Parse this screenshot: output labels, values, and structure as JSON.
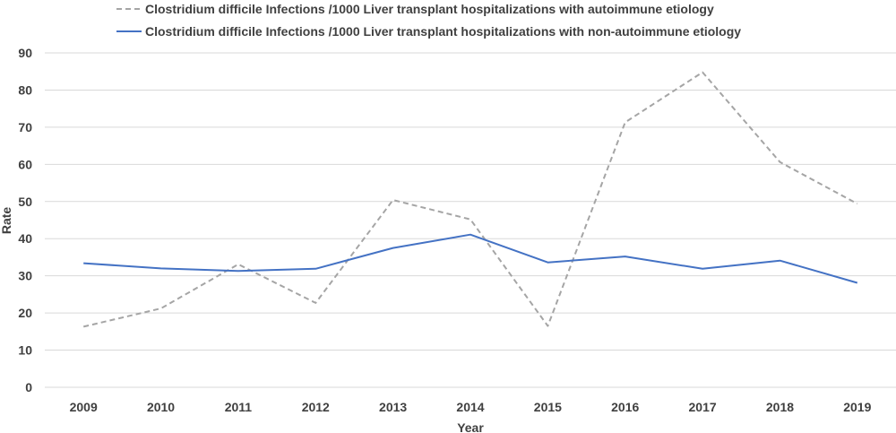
{
  "chart_data": {
    "type": "line",
    "x": [
      "2009",
      "2010",
      "2011",
      "2012",
      "2013",
      "2014",
      "2015",
      "2016",
      "2017",
      "2018",
      "2019"
    ],
    "xlabel": "Year",
    "ylabel": "Rate",
    "ylim": [
      0,
      90
    ],
    "yticks": [
      0,
      10,
      20,
      30,
      40,
      50,
      60,
      70,
      80,
      90
    ],
    "grid": true,
    "legend_position": "top",
    "series": [
      {
        "name": "Clostridium difficile Infections /1000  Liver transplant  hospitalizations with autoimmune etiology",
        "values": [
          16.3,
          21.2,
          33.1,
          22.7,
          50.4,
          45.2,
          16.5,
          71.3,
          84.8,
          60.6,
          49.4
        ],
        "color": "#a5a5a5",
        "style": "dashed"
      },
      {
        "name": "Clostridium difficile Infections /1000  Liver transplant  hospitalizations with non-autoimmune etiology",
        "values": [
          33.4,
          32.0,
          31.3,
          31.9,
          37.5,
          41.1,
          33.6,
          35.2,
          31.9,
          34.1,
          28.1
        ],
        "color": "#4472c4",
        "style": "solid"
      }
    ]
  }
}
